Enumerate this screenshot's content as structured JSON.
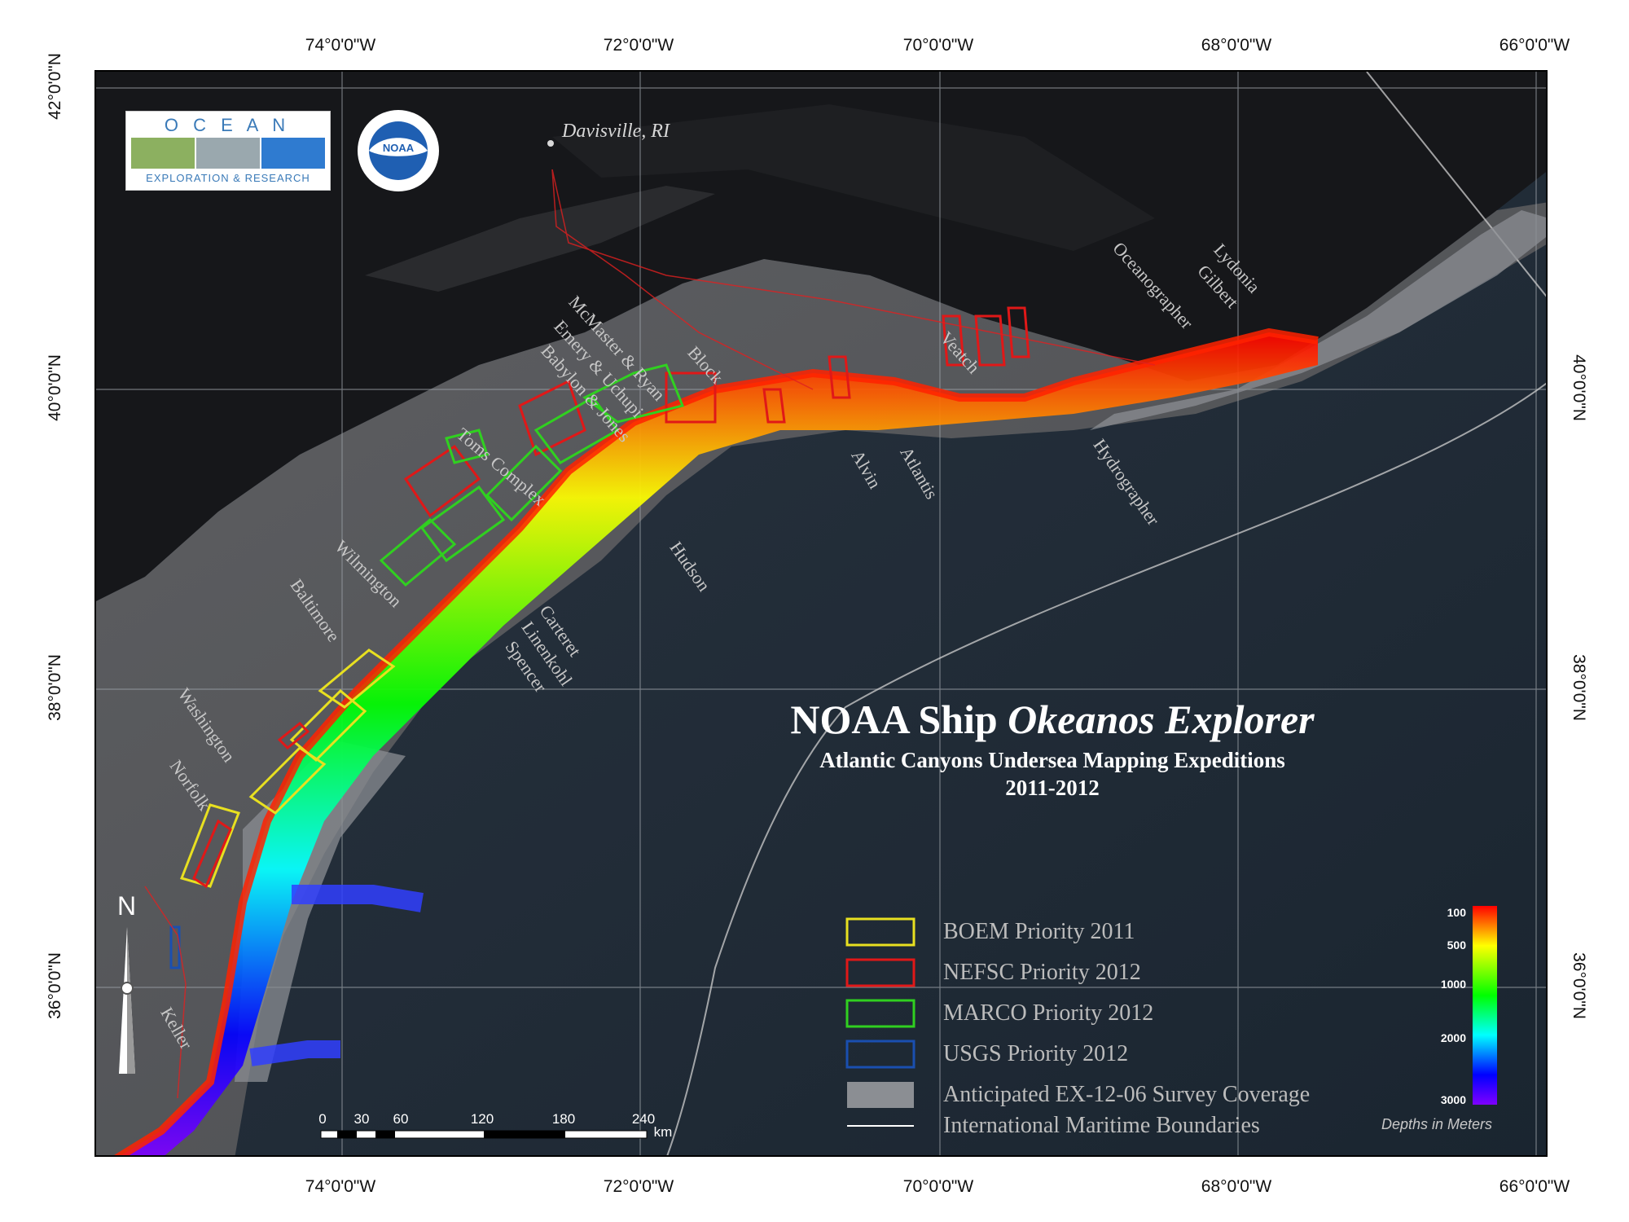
{
  "axes": {
    "top": [
      "74°0'0\"W",
      "72°0'0\"W",
      "70°0'0\"W",
      "68°0'0\"W",
      "66°0'0\"W"
    ],
    "bottom": [
      "74°0'0\"W",
      "72°0'0\"W",
      "70°0'0\"W",
      "68°0'0\"W",
      "66°0'0\"W"
    ],
    "left": [
      "42°0'0\"N",
      "40°0'0\"N",
      "38°0'0\"N",
      "36°0'0\"N"
    ],
    "right": [
      "40°0'0\"N",
      "38°0'0\"N",
      "36°0'0\"N"
    ]
  },
  "place": "Davisville, RI",
  "canyons": {
    "oceanographer": "Oceanographer",
    "lydonia": "Lydonia",
    "gilbert": "Gilbert",
    "veatch": "Veatch",
    "block": "Block",
    "mcmaster": "McMaster & Ryan",
    "emery": "Emery & Uchupi",
    "babylon": "Babylon & Jones",
    "toms": "Toms Complex",
    "alvin": "Alvin",
    "atlantis": "Atlantis",
    "hydrographer": "Hydrographer",
    "hudson": "Hudson",
    "wilmington": "Wilmington",
    "baltimore": "Baltimore",
    "carteret": "Carteret",
    "linenkohl": "Linenkohl",
    "spencer": "Spencer",
    "washington": "Washington",
    "norfolk": "Norfolk",
    "keller": "Keller"
  },
  "logos": {
    "ocean_letters": "O C E A N",
    "ocean_caption": "EXPLORATION & RESEARCH",
    "noaa": "NOAA"
  },
  "title": {
    "main_prefix": "NOAA Ship ",
    "main_italic": "Okeanos Explorer",
    "subtitle": "Atlantic Canyons Undersea Mapping Expeditions",
    "years": "2011-2012"
  },
  "legend": [
    {
      "label": "BOEM Priority 2011",
      "color": "#e8e020",
      "kind": "outline"
    },
    {
      "label": "NEFSC Priority 2012",
      "color": "#e01818",
      "kind": "outline"
    },
    {
      "label": "MARCO Priority 2012",
      "color": "#30d020",
      "kind": "outline"
    },
    {
      "label": "USGS Priority 2012",
      "color": "#1a4fb0",
      "kind": "outline"
    },
    {
      "label": "Anticipated EX-12-06 Survey Coverage",
      "color": "#7f8289",
      "kind": "fill"
    },
    {
      "label": "International Maritime Boundaries",
      "color": "#ffffff",
      "kind": "line"
    }
  ],
  "depth_scale": {
    "labels": [
      "100",
      "500",
      "1000",
      "2000",
      "3000"
    ],
    "unit": "Depths in Meters",
    "colors": [
      "#ff0000",
      "#ffff00",
      "#00ff00",
      "#00ffff",
      "#0000ff",
      "#8000ff"
    ]
  },
  "scale_bar": {
    "labels": [
      "0",
      "30",
      "60",
      "120",
      "180",
      "240"
    ],
    "unit": "km"
  },
  "north_arrow": "N"
}
